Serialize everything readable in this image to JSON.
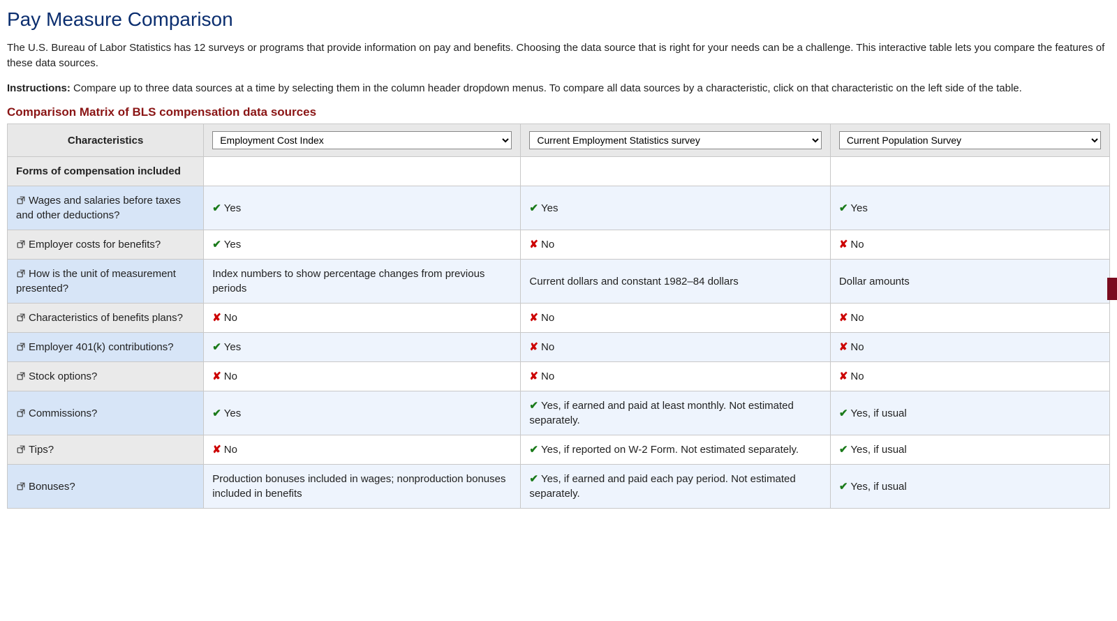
{
  "colors": {
    "title": "#0b2e6f",
    "subheading": "#8a1515",
    "check": "#1a7a1a",
    "cross": "#cc0000",
    "header_bg": "#e8e8e8",
    "odd_char_bg": "#d7e5f7",
    "odd_data_bg": "#eef4fd",
    "even_char_bg": "#eaeaea",
    "even_data_bg": "#ffffff",
    "border": "#c8c8c8",
    "side_tab": "#7a0b1f"
  },
  "page": {
    "title": "Pay Measure Comparison",
    "intro": "The U.S. Bureau of Labor Statistics has 12 surveys or programs that provide information on pay and benefits. Choosing the data source that is right for your needs can be a challenge. This interactive table lets you compare the features of these data sources.",
    "instructions_label": "Instructions:",
    "instructions_text": " Compare up to three data sources at a time by selecting them in the column header dropdown menus. To compare all data sources by a characteristic, click on that characteristic on the left side of the table.",
    "matrix_title": "Comparison Matrix of BLS compensation data sources"
  },
  "table": {
    "col0_header": "Characteristics",
    "dropdowns": [
      {
        "selected": "Employment Cost Index"
      },
      {
        "selected": "Current Employment Statistics survey"
      },
      {
        "selected": "Current Population Survey"
      }
    ],
    "section_header": "Forms of compensation included",
    "rows": [
      {
        "label": "Wages and salaries before taxes and other deductions?",
        "cells": [
          {
            "kind": "yes",
            "text": "Yes"
          },
          {
            "kind": "yes",
            "text": "Yes"
          },
          {
            "kind": "yes",
            "text": "Yes"
          }
        ]
      },
      {
        "label": "Employer costs for benefits?",
        "cells": [
          {
            "kind": "yes",
            "text": "Yes"
          },
          {
            "kind": "no",
            "text": "No"
          },
          {
            "kind": "no",
            "text": "No"
          }
        ]
      },
      {
        "label": "How is the unit of measurement presented?",
        "cells": [
          {
            "kind": "plain",
            "text": "Index numbers to show percentage changes from previous periods"
          },
          {
            "kind": "plain",
            "text": "Current dollars and constant 1982–84 dollars"
          },
          {
            "kind": "plain",
            "text": "Dollar amounts"
          }
        ]
      },
      {
        "label": "Characteristics of benefits plans?",
        "cells": [
          {
            "kind": "no",
            "text": "No"
          },
          {
            "kind": "no",
            "text": "No"
          },
          {
            "kind": "no",
            "text": "No"
          }
        ]
      },
      {
        "label": "Employer 401(k) contributions?",
        "cells": [
          {
            "kind": "yes",
            "text": "Yes"
          },
          {
            "kind": "no",
            "text": "No"
          },
          {
            "kind": "no",
            "text": "No"
          }
        ]
      },
      {
        "label": "Stock options?",
        "cells": [
          {
            "kind": "no",
            "text": "No"
          },
          {
            "kind": "no",
            "text": "No"
          },
          {
            "kind": "no",
            "text": "No"
          }
        ]
      },
      {
        "label": "Commissions?",
        "cells": [
          {
            "kind": "yes",
            "text": "Yes"
          },
          {
            "kind": "yes",
            "text": "Yes, if earned and paid at least monthly. Not estimated separately."
          },
          {
            "kind": "yes",
            "text": "Yes, if usual"
          }
        ]
      },
      {
        "label": "Tips?",
        "cells": [
          {
            "kind": "no",
            "text": "No"
          },
          {
            "kind": "yes",
            "text": "Yes, if reported on W-2 Form. Not estimated separately."
          },
          {
            "kind": "yes",
            "text": "Yes, if usual"
          }
        ]
      },
      {
        "label": "Bonuses?",
        "cells": [
          {
            "kind": "plain",
            "text": "Production bonuses included in wages; nonproduction bonuses included in benefits"
          },
          {
            "kind": "yes",
            "text": "Yes, if earned and paid each pay period. Not estimated separately."
          },
          {
            "kind": "yes",
            "text": "Yes, if usual"
          }
        ]
      }
    ]
  }
}
